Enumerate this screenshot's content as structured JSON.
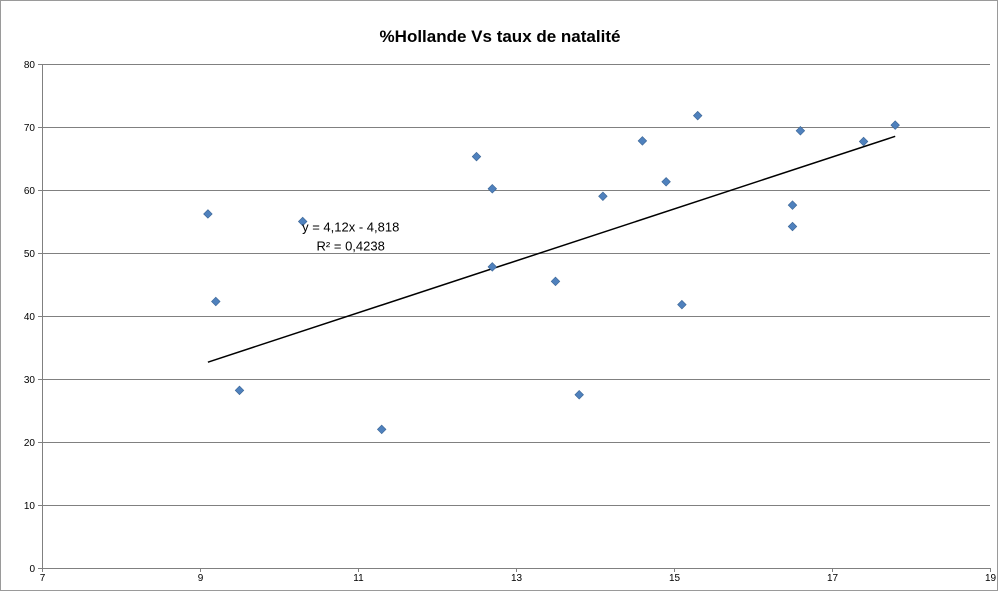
{
  "chart_data": {
    "type": "scatter",
    "title": "%Hollande Vs taux de natalité",
    "xlabel": "",
    "ylabel": "",
    "xlim": [
      7,
      19
    ],
    "ylim": [
      0,
      80
    ],
    "xticks": [
      7,
      9,
      11,
      13,
      15,
      17,
      19
    ],
    "yticks": [
      0,
      10,
      20,
      30,
      40,
      50,
      60,
      70,
      80
    ],
    "x_tick_labels": [
      "7",
      "9",
      "11",
      "13",
      "15",
      "17",
      "19"
    ],
    "y_tick_labels": [
      "0",
      "10",
      "20",
      "30",
      "40",
      "50",
      "60",
      "70",
      "80"
    ],
    "grid": "horizontal",
    "marker_color": "#4F81BD",
    "trendline_color": "#000000",
    "series": [
      {
        "points": [
          {
            "x": 9.1,
            "y": 56.2
          },
          {
            "x": 9.2,
            "y": 42.3
          },
          {
            "x": 9.5,
            "y": 28.2
          },
          {
            "x": 10.3,
            "y": 55.0
          },
          {
            "x": 11.3,
            "y": 22.0
          },
          {
            "x": 12.5,
            "y": 65.3
          },
          {
            "x": 12.7,
            "y": 60.2
          },
          {
            "x": 12.7,
            "y": 47.8
          },
          {
            "x": 13.5,
            "y": 45.5
          },
          {
            "x": 13.8,
            "y": 27.5
          },
          {
            "x": 14.1,
            "y": 59.0
          },
          {
            "x": 14.6,
            "y": 67.8
          },
          {
            "x": 14.9,
            "y": 61.3
          },
          {
            "x": 15.1,
            "y": 41.8
          },
          {
            "x": 15.3,
            "y": 71.8
          },
          {
            "x": 16.5,
            "y": 57.6
          },
          {
            "x": 16.5,
            "y": 54.2
          },
          {
            "x": 16.6,
            "y": 69.4
          },
          {
            "x": 17.4,
            "y": 67.7
          },
          {
            "x": 17.8,
            "y": 70.3
          }
        ]
      }
    ],
    "trendline": {
      "slope": 4.12,
      "intercept": -4.818,
      "x_start": 9.1,
      "x_end": 17.8,
      "equation_label": "y = 4,12x - 4,818",
      "r2_label": "R² = 0,4238"
    }
  }
}
